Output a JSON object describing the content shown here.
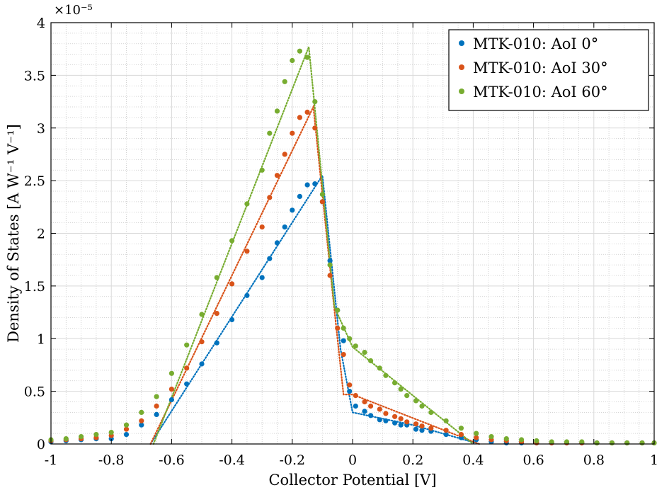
{
  "chart_data": {
    "type": "scatter",
    "title": "",
    "xlabel": "Collector Potential [V]",
    "ylabel": "Density of States [A W⁻¹ V⁻¹]",
    "y_multiplier": "×10⁻⁵",
    "xlim": [
      -1,
      1
    ],
    "ylim": [
      0,
      4
    ],
    "x_ticks": [
      -1,
      -0.8,
      -0.6,
      -0.4,
      -0.2,
      0,
      0.2,
      0.4,
      0.6,
      0.8,
      1
    ],
    "x_tick_labels": [
      "-1",
      "-0.8",
      "-0.6",
      "-0.4",
      "-0.2",
      "0",
      "0.2",
      "0.4",
      "0.6",
      "0.8",
      "1"
    ],
    "y_ticks": [
      0,
      0.5,
      1,
      1.5,
      2,
      2.5,
      3,
      3.5,
      4
    ],
    "y_tick_labels": [
      "0",
      "0.5",
      "1",
      "1.5",
      "2",
      "2.5",
      "3",
      "3.5",
      "4"
    ],
    "grid": true,
    "minor_grid": true,
    "legend_position": "top-right",
    "series": [
      {
        "name": "MTK-010: AoI 0°",
        "color": "#0072BD",
        "points": [
          [
            -1,
            0.02
          ],
          [
            -0.95,
            0.03
          ],
          [
            -0.9,
            0.04
          ],
          [
            -0.85,
            0.05
          ],
          [
            -0.8,
            0.05
          ],
          [
            -0.75,
            0.09
          ],
          [
            -0.7,
            0.18
          ],
          [
            -0.65,
            0.28
          ],
          [
            -0.6,
            0.42
          ],
          [
            -0.55,
            0.57
          ],
          [
            -0.5,
            0.76
          ],
          [
            -0.45,
            0.96
          ],
          [
            -0.4,
            1.18
          ],
          [
            -0.35,
            1.41
          ],
          [
            -0.3,
            1.58
          ],
          [
            -0.275,
            1.76
          ],
          [
            -0.25,
            1.91
          ],
          [
            -0.225,
            2.06
          ],
          [
            -0.2,
            2.22
          ],
          [
            -0.175,
            2.35
          ],
          [
            -0.15,
            2.46
          ],
          [
            -0.125,
            2.47
          ],
          [
            -0.1,
            2.3
          ],
          [
            -0.075,
            1.74
          ],
          [
            -0.05,
            1.27
          ],
          [
            -0.03,
            0.98
          ],
          [
            -0.01,
            0.5
          ],
          [
            0.01,
            0.36
          ],
          [
            0.04,
            0.31
          ],
          [
            0.06,
            0.27
          ],
          [
            0.09,
            0.23
          ],
          [
            0.11,
            0.22
          ],
          [
            0.14,
            0.2
          ],
          [
            0.16,
            0.18
          ],
          [
            0.18,
            0.18
          ],
          [
            0.21,
            0.14
          ],
          [
            0.23,
            0.13
          ],
          [
            0.26,
            0.12
          ],
          [
            0.31,
            0.09
          ],
          [
            0.36,
            0.06
          ],
          [
            0.41,
            0.04
          ],
          [
            0.46,
            0.02
          ],
          [
            0.51,
            0.01
          ],
          [
            0.56,
            0.01
          ],
          [
            0.61,
            0.01
          ],
          [
            0.66,
            0.01
          ],
          [
            0.71,
            0.01
          ],
          [
            0.76,
            0.01
          ],
          [
            0.81,
            0.01
          ],
          [
            0.86,
            0.01
          ],
          [
            0.91,
            0.01
          ],
          [
            0.96,
            0.01
          ],
          [
            1.0,
            0.01
          ]
        ],
        "fit": [
          [
            -0.67,
            0
          ],
          [
            -0.1,
            2.55
          ],
          [
            -0.04,
            0.9
          ],
          [
            0,
            0.3
          ],
          [
            0.2,
            0.18
          ],
          [
            0.42,
            0
          ]
        ]
      },
      {
        "name": "MTK-010: AoI 30°",
        "color": "#D95319",
        "points": [
          [
            -1,
            0.03
          ],
          [
            -0.95,
            0.04
          ],
          [
            -0.9,
            0.05
          ],
          [
            -0.85,
            0.06
          ],
          [
            -0.8,
            0.08
          ],
          [
            -0.75,
            0.14
          ],
          [
            -0.7,
            0.22
          ],
          [
            -0.65,
            0.36
          ],
          [
            -0.6,
            0.52
          ],
          [
            -0.55,
            0.72
          ],
          [
            -0.5,
            0.97
          ],
          [
            -0.45,
            1.24
          ],
          [
            -0.4,
            1.52
          ],
          [
            -0.35,
            1.83
          ],
          [
            -0.3,
            2.06
          ],
          [
            -0.275,
            2.34
          ],
          [
            -0.25,
            2.55
          ],
          [
            -0.225,
            2.75
          ],
          [
            -0.2,
            2.95
          ],
          [
            -0.175,
            3.1
          ],
          [
            -0.15,
            3.15
          ],
          [
            -0.125,
            3.0
          ],
          [
            -0.1,
            2.3
          ],
          [
            -0.075,
            1.6
          ],
          [
            -0.05,
            1.1
          ],
          [
            -0.03,
            0.85
          ],
          [
            -0.01,
            0.56
          ],
          [
            0.01,
            0.46
          ],
          [
            0.04,
            0.4
          ],
          [
            0.06,
            0.36
          ],
          [
            0.09,
            0.33
          ],
          [
            0.11,
            0.29
          ],
          [
            0.14,
            0.26
          ],
          [
            0.16,
            0.24
          ],
          [
            0.18,
            0.21
          ],
          [
            0.21,
            0.19
          ],
          [
            0.23,
            0.17
          ],
          [
            0.26,
            0.15
          ],
          [
            0.31,
            0.13
          ],
          [
            0.36,
            0.09
          ],
          [
            0.41,
            0.06
          ],
          [
            0.46,
            0.04
          ],
          [
            0.51,
            0.03
          ],
          [
            0.56,
            0.02
          ],
          [
            0.61,
            0.01
          ],
          [
            0.66,
            0.01
          ],
          [
            0.71,
            0.01
          ],
          [
            0.76,
            0.01
          ],
          [
            0.81,
            0.01
          ],
          [
            0.86,
            0.01
          ],
          [
            0.91,
            0.01
          ],
          [
            0.96,
            0.01
          ],
          [
            1.0,
            0.01
          ]
        ],
        "fit": [
          [
            -0.67,
            0
          ],
          [
            -0.13,
            3.2
          ],
          [
            -0.065,
            1.4
          ],
          [
            -0.03,
            0.47
          ],
          [
            0,
            0.47
          ],
          [
            0.42,
            0
          ]
        ]
      },
      {
        "name": "MTK-010: AoI 60°",
        "color": "#77AC30",
        "points": [
          [
            -1,
            0.04
          ],
          [
            -0.95,
            0.05
          ],
          [
            -0.9,
            0.07
          ],
          [
            -0.85,
            0.09
          ],
          [
            -0.8,
            0.11
          ],
          [
            -0.75,
            0.18
          ],
          [
            -0.7,
            0.3
          ],
          [
            -0.65,
            0.45
          ],
          [
            -0.6,
            0.67
          ],
          [
            -0.55,
            0.94
          ],
          [
            -0.5,
            1.23
          ],
          [
            -0.45,
            1.58
          ],
          [
            -0.4,
            1.93
          ],
          [
            -0.35,
            2.28
          ],
          [
            -0.3,
            2.6
          ],
          [
            -0.275,
            2.95
          ],
          [
            -0.25,
            3.16
          ],
          [
            -0.225,
            3.44
          ],
          [
            -0.2,
            3.64
          ],
          [
            -0.175,
            3.73
          ],
          [
            -0.15,
            3.67
          ],
          [
            -0.125,
            3.25
          ],
          [
            -0.1,
            2.37
          ],
          [
            -0.075,
            1.7
          ],
          [
            -0.05,
            1.27
          ],
          [
            -0.03,
            1.1
          ],
          [
            -0.01,
            1.0
          ],
          [
            0.01,
            0.93
          ],
          [
            0.04,
            0.87
          ],
          [
            0.06,
            0.79
          ],
          [
            0.09,
            0.72
          ],
          [
            0.11,
            0.65
          ],
          [
            0.14,
            0.58
          ],
          [
            0.16,
            0.52
          ],
          [
            0.18,
            0.46
          ],
          [
            0.21,
            0.41
          ],
          [
            0.23,
            0.36
          ],
          [
            0.26,
            0.3
          ],
          [
            0.31,
            0.22
          ],
          [
            0.36,
            0.15
          ],
          [
            0.41,
            0.1
          ],
          [
            0.46,
            0.07
          ],
          [
            0.51,
            0.05
          ],
          [
            0.56,
            0.04
          ],
          [
            0.61,
            0.03
          ],
          [
            0.66,
            0.02
          ],
          [
            0.71,
            0.02
          ],
          [
            0.76,
            0.02
          ],
          [
            0.81,
            0.01
          ],
          [
            0.86,
            0.01
          ],
          [
            0.91,
            0.01
          ],
          [
            0.96,
            0.01
          ],
          [
            1.0,
            0.01
          ]
        ],
        "fit": [
          [
            -0.66,
            0
          ],
          [
            -0.145,
            3.77
          ],
          [
            -0.06,
            1.3
          ],
          [
            0,
            0.92
          ],
          [
            0.4,
            0
          ]
        ]
      }
    ]
  }
}
